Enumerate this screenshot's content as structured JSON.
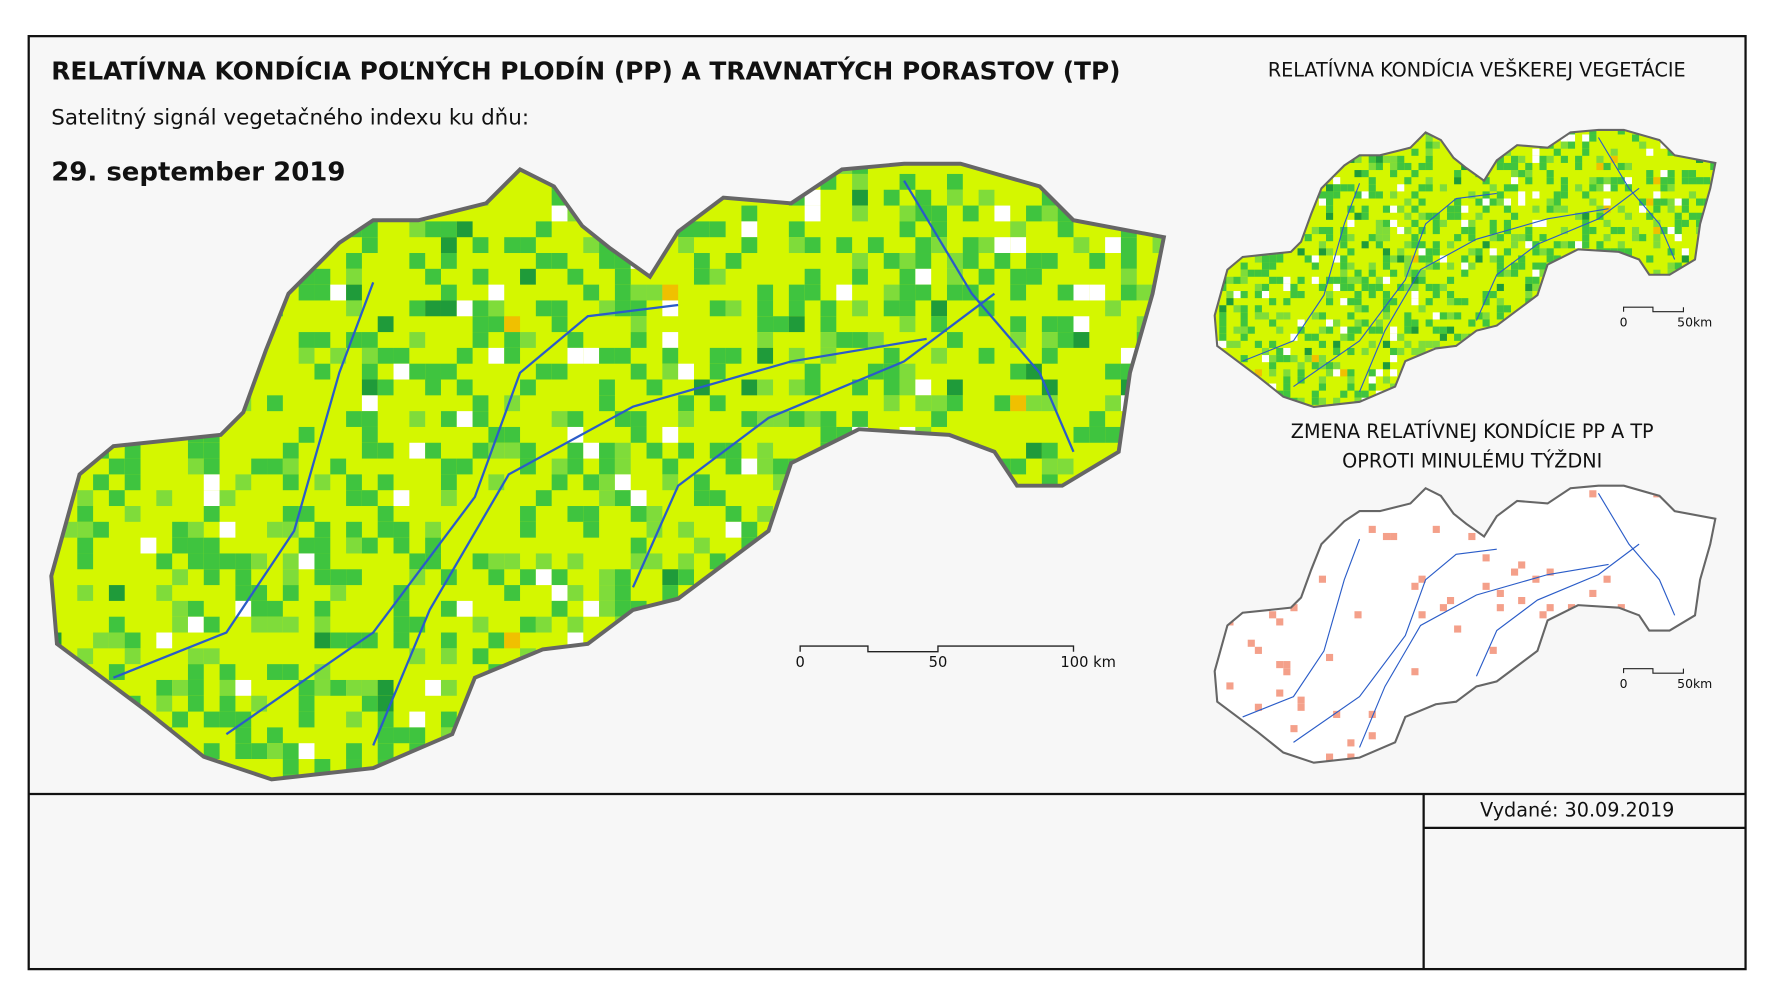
{
  "header": {
    "title": "RELATÍVNA KONDÍCIA POĽNÝCH PLODÍN (PP) A TRAVNATÝCH PORASTOV (TP)",
    "subtitle": "Satelitný signál vegetačného indexu ku dňu:",
    "date": "29. september 2019"
  },
  "main_map": {
    "scale_labels": [
      "0",
      "50",
      "100 km"
    ]
  },
  "vegetation_map": {
    "title": "RELATÍVNA KONDÍCIA VEŠKEREJ VEGETÁCIE",
    "scale_labels": [
      "0",
      "50km"
    ]
  },
  "change_map": {
    "title_lines": [
      "ZMENA RELATÍVNEJ KONDÍCIE PP A TP",
      "OPROTI MINULÉMU TÝŽDNI"
    ],
    "scale_labels": [
      "0",
      "50km"
    ]
  },
  "footer": {
    "issued": "Vydané: 30.09.2019"
  }
}
